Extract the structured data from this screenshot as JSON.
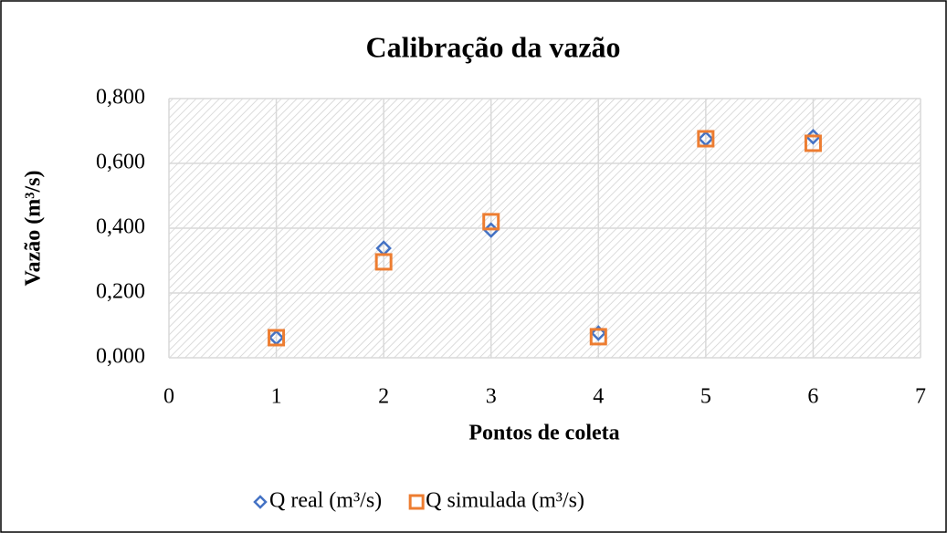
{
  "chart_data": {
    "type": "scatter",
    "title": "Calibração da vazão",
    "x_label": "Pontos de coleta",
    "y_label": "Vazão (m³/s)",
    "series": [
      {
        "name": "Q real (m³/s)",
        "color": "#4472c4",
        "marker": "diamond",
        "x": [
          1,
          2,
          3,
          4,
          5,
          6
        ],
        "values": [
          0.062,
          0.338,
          0.394,
          0.076,
          0.676,
          0.682
        ]
      },
      {
        "name": "Q simulada (m³/s)",
        "color": "#ed7d31",
        "marker": "square",
        "x": [
          1,
          2,
          3,
          4,
          5,
          6
        ],
        "values": [
          0.062,
          0.296,
          0.42,
          0.065,
          0.676,
          0.662
        ]
      }
    ],
    "xlim": [
      0,
      7
    ],
    "xticks": [
      0,
      1,
      2,
      3,
      4,
      5,
      6,
      7
    ],
    "ylim": [
      0,
      0.8
    ],
    "yticks": [
      {
        "value": 0,
        "label": "0,000"
      },
      {
        "value": 0.2,
        "label": "0,200"
      },
      {
        "value": 0.4,
        "label": "0,400"
      },
      {
        "value": 0.6,
        "label": "0,600"
      },
      {
        "value": 0.8,
        "label": "0,800"
      }
    ],
    "grid": true,
    "legend": "bottom"
  }
}
